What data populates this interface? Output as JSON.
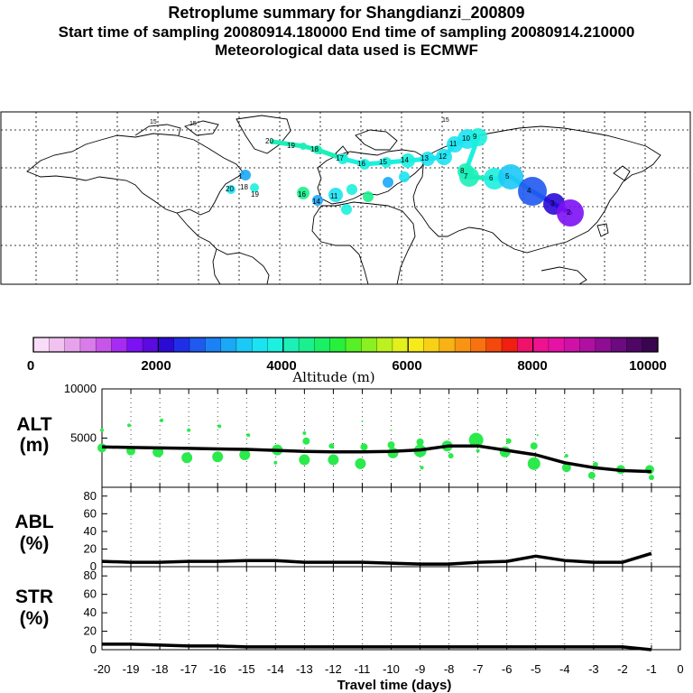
{
  "header": {
    "title": "Retroplume summary for Shangdianzi_200809",
    "sampling": "Start time of sampling 20080914.180000     End time of sampling 20080914.210000",
    "met": "Meteorological data used is ECMWF"
  },
  "colorbar": {
    "label": "Altitude (m)",
    "tick_labels": [
      "0",
      "2000",
      "4000",
      "6000",
      "8000",
      "10000"
    ],
    "colors": [
      "#f9dcf7",
      "#f1c2f0",
      "#e6a3ec",
      "#d97ce9",
      "#c855ea",
      "#a62cf2",
      "#7c11f4",
      "#5b0ae0",
      "#2b0ad6",
      "#1f2fe8",
      "#1f59ef",
      "#1b82f5",
      "#1aa8f7",
      "#1cc9f6",
      "#1ce3f2",
      "#1cf0de",
      "#1cf0b8",
      "#1af08e",
      "#1af064",
      "#26f03c",
      "#55f025",
      "#8af01f",
      "#bcf01e",
      "#e3f01c",
      "#f6ea1a",
      "#f8d016",
      "#f8b214",
      "#f89412",
      "#f8720f",
      "#f5480c",
      "#f01f10",
      "#f0126a",
      "#ef1290",
      "#e612a5",
      "#cf11a7",
      "#b010a1",
      "#8e0d93",
      "#6c0a80",
      "#4f0766",
      "#3a054f"
    ]
  },
  "map": {
    "trajectory_labels": [
      {
        "t": "15"
      },
      {
        "t": "15"
      },
      {
        "t": "15"
      },
      {
        "t": "20"
      },
      {
        "t": "19"
      },
      {
        "t": "18"
      },
      {
        "t": "17"
      },
      {
        "t": "16"
      },
      {
        "t": "15"
      },
      {
        "t": "14"
      },
      {
        "t": "13"
      },
      {
        "t": "12"
      },
      {
        "t": "11"
      },
      {
        "t": "10"
      },
      {
        "t": "9"
      },
      {
        "t": "8"
      },
      {
        "t": "7"
      },
      {
        "t": "6"
      },
      {
        "t": "5"
      },
      {
        "t": "4"
      },
      {
        "t": "3"
      },
      {
        "t": "2"
      },
      {
        "t": "1"
      },
      {
        "t": "19"
      },
      {
        "t": "20"
      },
      {
        "t": "18"
      },
      {
        "t": "16"
      },
      {
        "t": "14"
      },
      {
        "t": "11"
      },
      {
        "t": "12"
      }
    ]
  },
  "panels": {
    "alt": {
      "label_line1": "ALT",
      "label_line2": "(m)"
    },
    "abl": {
      "label_line1": "ABL",
      "label_line2": "(%)"
    },
    "str": {
      "label_line1": "STR",
      "label_line2": "(%)"
    }
  },
  "xaxis": {
    "title": "Travel time (days)",
    "tick_labels": [
      "-20",
      "-19",
      "-18",
      "-17",
      "-16",
      "-15",
      "-14",
      "-13",
      "-12",
      "-11",
      "-10",
      "-9",
      "-8",
      "-7",
      "-6",
      "-5",
      "-4",
      "-3",
      "-2",
      "-1",
      "0"
    ]
  },
  "chart_data": [
    {
      "type": "line",
      "title": "ALT",
      "xlabel": "Travel time (days)",
      "ylabel": "ALT (m)",
      "ylim": [
        0,
        10000
      ],
      "yticks": [
        5000,
        10000
      ],
      "x": [
        -20,
        -19,
        -18,
        -17,
        -16,
        -15,
        -14,
        -13,
        -12,
        -11,
        -10,
        -9,
        -8,
        -7,
        -6,
        -5,
        -4,
        -3,
        -2,
        -1
      ],
      "series": [
        {
          "name": "mean altitude",
          "values": [
            4100,
            4050,
            4000,
            3950,
            3900,
            3850,
            3750,
            3650,
            3600,
            3600,
            3650,
            3800,
            4200,
            4200,
            3750,
            3300,
            2500,
            2000,
            1700,
            1600
          ]
        },
        {
          "name": "cluster altitudes",
          "points": [
            [
              -20,
              4000,
              5
            ],
            [
              -20,
              5800,
              2
            ],
            [
              -19,
              3700,
              5
            ],
            [
              -19,
              6300,
              2
            ],
            [
              -18,
              3600,
              6
            ],
            [
              -18,
              6800,
              2
            ],
            [
              -17,
              3000,
              6
            ],
            [
              -17,
              5800,
              2
            ],
            [
              -16,
              3100,
              6
            ],
            [
              -16,
              6200,
              2
            ],
            [
              -15,
              3300,
              6
            ],
            [
              -15,
              5300,
              2
            ],
            [
              -14,
              3800,
              6
            ],
            [
              -14,
              2500,
              2
            ],
            [
              -13,
              2800,
              6
            ],
            [
              -13,
              4700,
              4
            ],
            [
              -13,
              5500,
              2
            ],
            [
              -12,
              2800,
              6
            ],
            [
              -12,
              4200,
              3
            ],
            [
              -11,
              2400,
              6
            ],
            [
              -11,
              4100,
              4
            ],
            [
              -11,
              6700,
              1
            ],
            [
              -10,
              3500,
              6
            ],
            [
              -10,
              4300,
              4
            ],
            [
              -10,
              5800,
              1
            ],
            [
              -9,
              3700,
              7
            ],
            [
              -9,
              4600,
              4
            ],
            [
              -9,
              2000,
              2
            ],
            [
              -8,
              4200,
              6
            ],
            [
              -8,
              3200,
              3
            ],
            [
              -7,
              4800,
              8
            ],
            [
              -7,
              3700,
              2
            ],
            [
              -6,
              3600,
              6
            ],
            [
              -6,
              4700,
              3
            ],
            [
              -5,
              2400,
              7
            ],
            [
              -5,
              4200,
              4
            ],
            [
              -5,
              5300,
              1
            ],
            [
              -4,
              2000,
              5
            ],
            [
              -4,
              3200,
              2
            ],
            [
              -3,
              1200,
              4
            ],
            [
              -3,
              2300,
              3
            ],
            [
              -2,
              1800,
              5
            ],
            [
              -1,
              1800,
              5
            ],
            [
              -1,
              1000,
              3
            ]
          ]
        }
      ]
    },
    {
      "type": "line",
      "title": "ABL",
      "ylabel": "ABL (%)",
      "ylim": [
        0,
        90
      ],
      "yticks": [
        0,
        20,
        40,
        60,
        80
      ],
      "x": [
        -20,
        -19,
        -18,
        -17,
        -16,
        -15,
        -14,
        -13,
        -12,
        -11,
        -10,
        -9,
        -8,
        -7,
        -6,
        -5,
        -4,
        -3,
        -2,
        -1
      ],
      "values": [
        6,
        5,
        5,
        6,
        6,
        7,
        7,
        5,
        5,
        5,
        4,
        3,
        3,
        5,
        6,
        12,
        7,
        5,
        5,
        15
      ]
    },
    {
      "type": "line",
      "title": "STR",
      "ylabel": "STR (%)",
      "ylim": [
        0,
        90
      ],
      "yticks": [
        0,
        20,
        40,
        60,
        80
      ],
      "x": [
        -20,
        -19,
        -18,
        -17,
        -16,
        -15,
        -14,
        -13,
        -12,
        -11,
        -10,
        -9,
        -8,
        -7,
        -6,
        -5,
        -4,
        -3,
        -2,
        -1
      ],
      "values": [
        6,
        6,
        5,
        4,
        4,
        3,
        3,
        3,
        3,
        3,
        3,
        3,
        3,
        3,
        3,
        3,
        3,
        3,
        3,
        0
      ]
    }
  ]
}
